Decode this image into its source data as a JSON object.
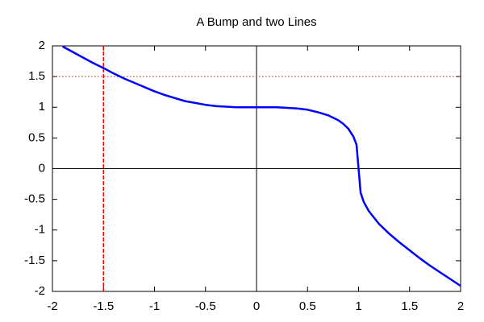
{
  "chart_data": {
    "type": "line",
    "title": "A Bump and two Lines",
    "x": [
      -1.9,
      -1.8,
      -1.7,
      -1.6,
      -1.5,
      -1.4,
      -1.3,
      -1.2,
      -1.1,
      -1.0,
      -0.9,
      -0.8,
      -0.7,
      -0.6,
      -0.5,
      -0.4,
      -0.3,
      -0.2,
      -0.1,
      0,
      0.1,
      0.2,
      0.3,
      0.4,
      0.5,
      0.6,
      0.7,
      0.8,
      0.85,
      0.9,
      0.95,
      0.98,
      1.0,
      1.02,
      1.05,
      1.1,
      1.2,
      1.3,
      1.4,
      1.5,
      1.6,
      1.7,
      1.8,
      1.9,
      2.0
    ],
    "series": [
      {
        "color": "#0000ff",
        "values": [
          1.99,
          1.9,
          1.81,
          1.72,
          1.64,
          1.55,
          1.47,
          1.4,
          1.33,
          1.26,
          1.2,
          1.15,
          1.1,
          1.07,
          1.04,
          1.02,
          1.01,
          1.0,
          1.0,
          1.0,
          1.0,
          1.0,
          0.99,
          0.98,
          0.96,
          0.92,
          0.87,
          0.79,
          0.73,
          0.65,
          0.52,
          0.39,
          0,
          -0.39,
          -0.54,
          -0.69,
          -0.9,
          -1.06,
          -1.2,
          -1.33,
          -1.46,
          -1.58,
          -1.69,
          -1.8,
          -1.91
        ]
      }
    ],
    "reference_lines": [
      {
        "axis": "x",
        "value": -1.5,
        "color": "#ff0000",
        "style": "dashed"
      },
      {
        "axis": "y",
        "value": 1.5,
        "color": "#ff0000",
        "style": "dotted"
      }
    ],
    "zero_axes": true,
    "xlim": [
      -2,
      2
    ],
    "xticks": [
      -2,
      -1.5,
      -1,
      -0.5,
      0,
      0.5,
      1,
      1.5,
      2
    ],
    "ylim": [
      -2,
      2
    ],
    "yticks": [
      -2,
      -1.5,
      -1,
      -0.5,
      0,
      0.5,
      1,
      1.5,
      2
    ]
  }
}
